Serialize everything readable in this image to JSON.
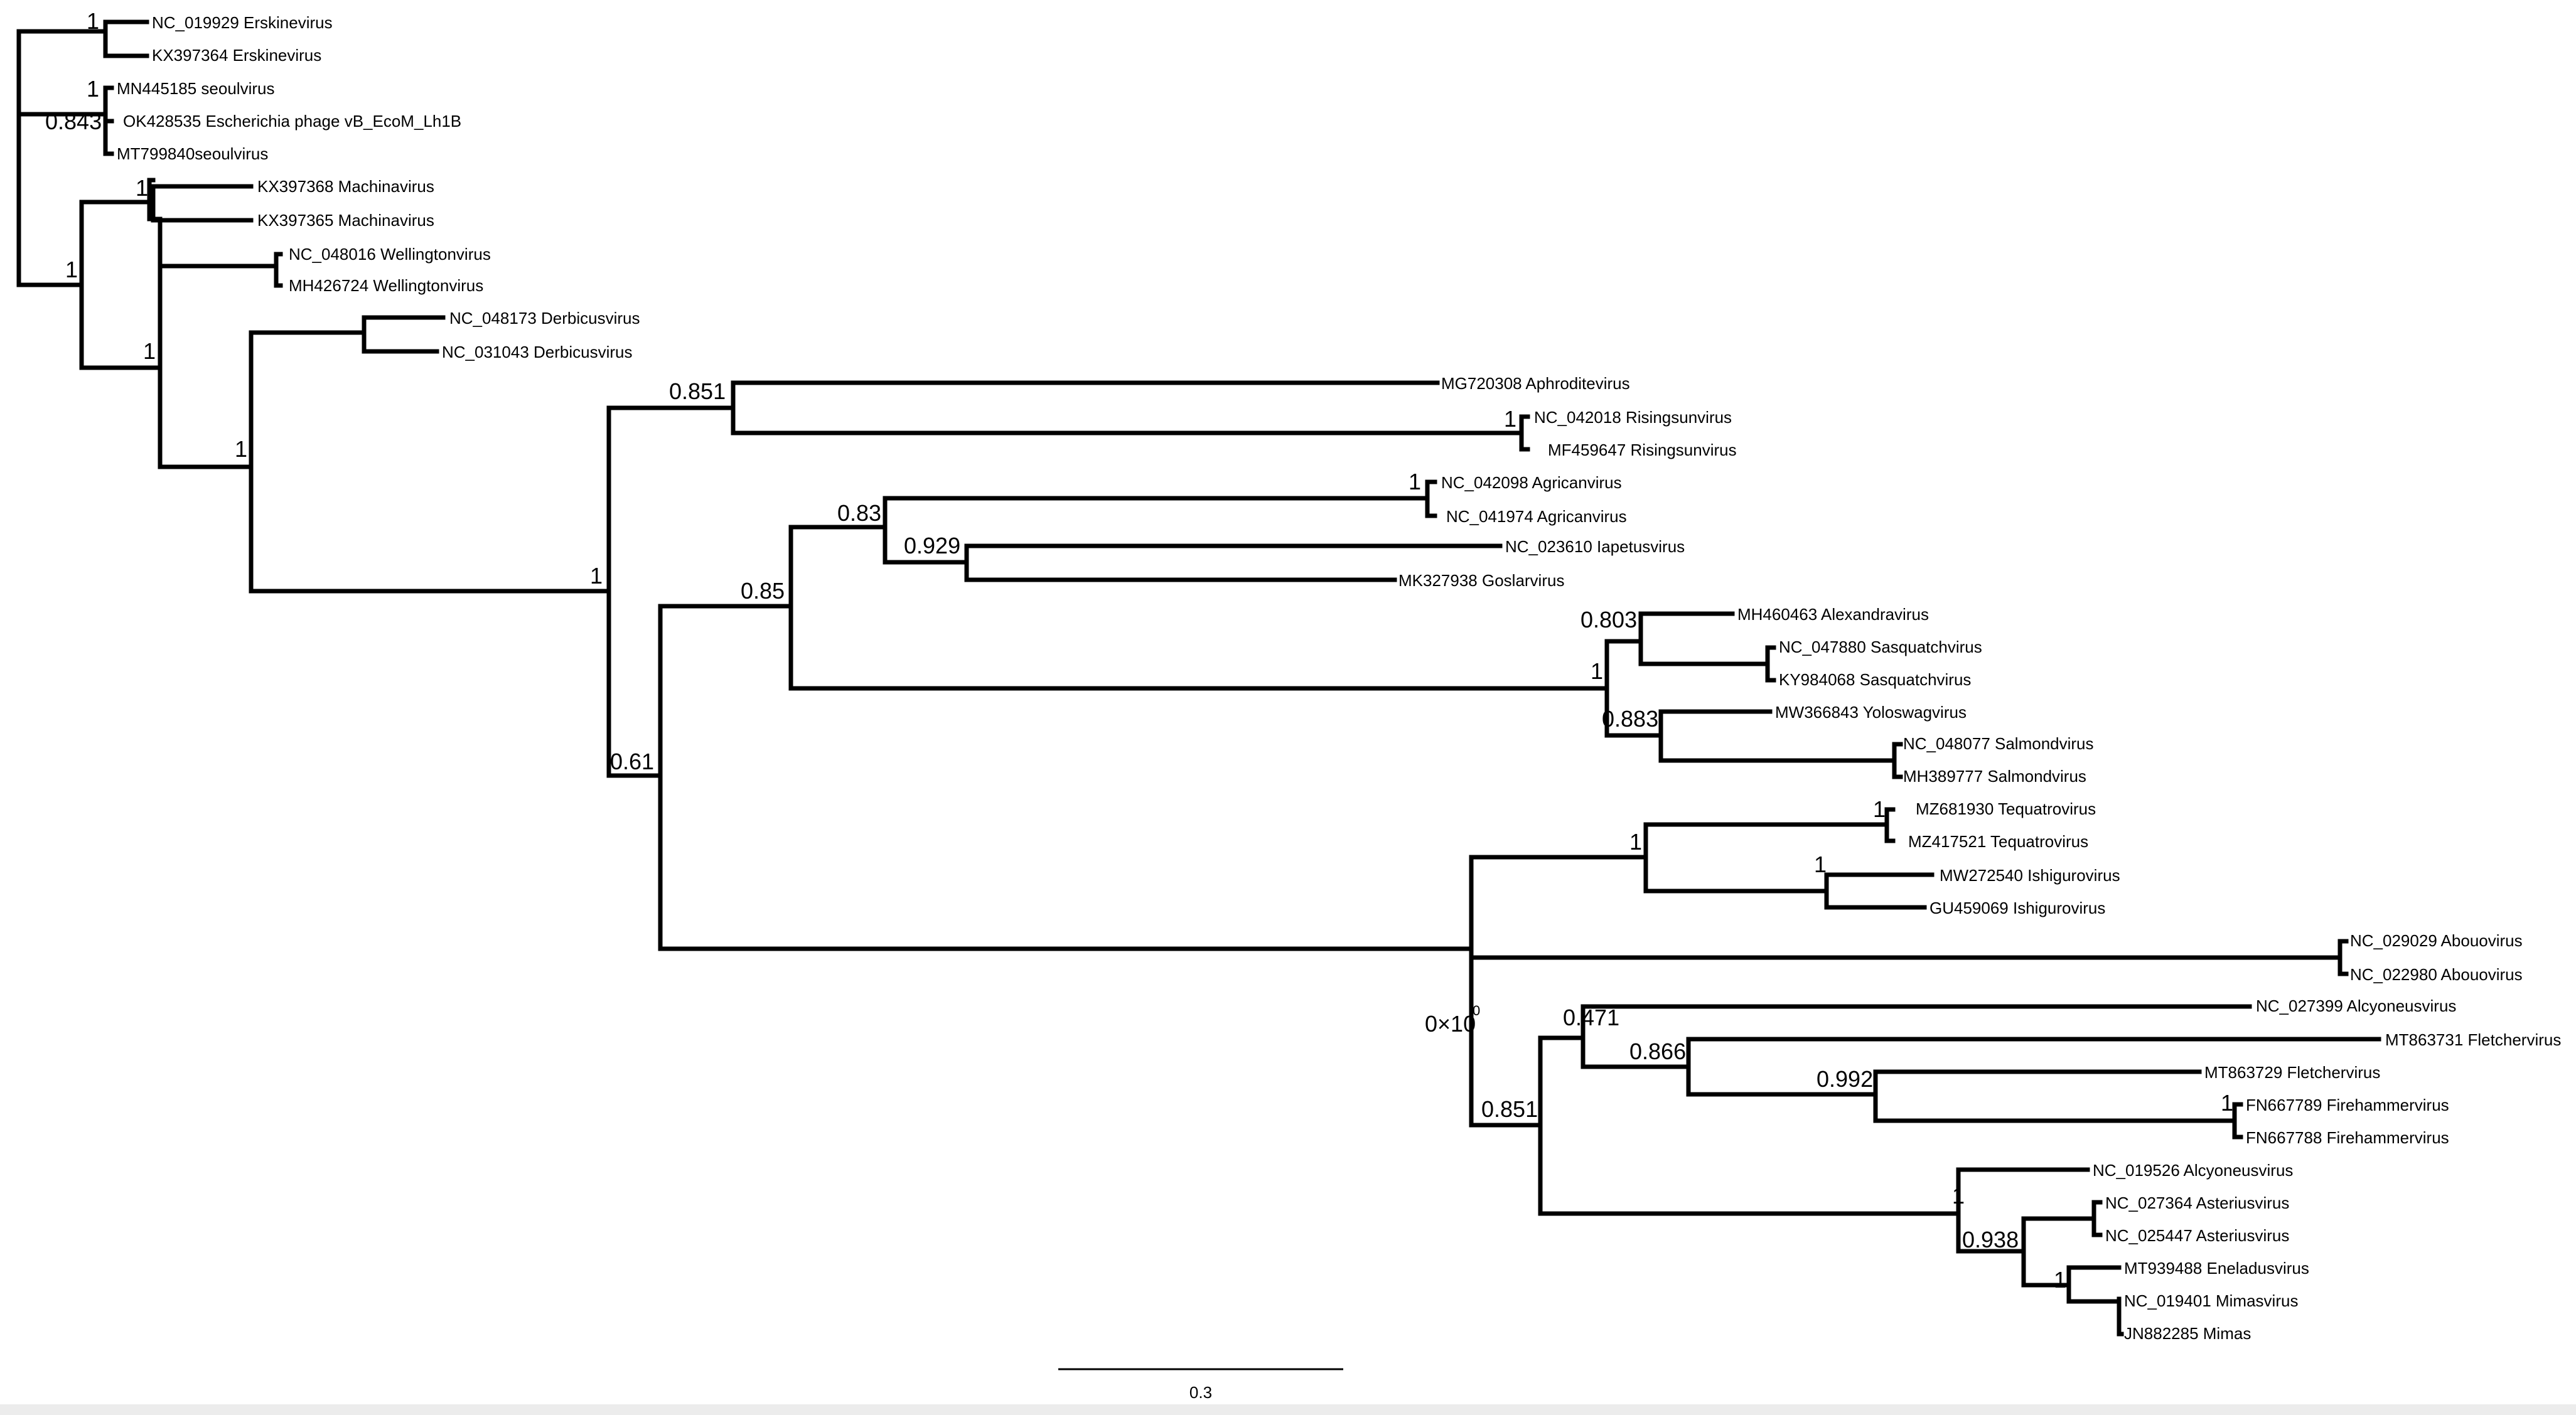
{
  "tips": [
    "NC_019929 Erskinevirus",
    "KX397364 Erskinevirus",
    "MN445185 seoulvirus",
    "OK428535 Escherichia phage vB_EcoM_Lh1B",
    "MT799840seoulvirus",
    "KX397368  Machinavirus",
    "KX397365  Machinavirus",
    "NC_048016 Wellingtonvirus",
    "MH426724 Wellingtonvirus",
    "NC_048173 Derbicusvirus",
    "NC_031043 Derbicusvirus",
    "MG720308 Aphroditevirus",
    "NC_042018 Risingsunvirus",
    "MF459647 Risingsunvirus",
    "NC_042098 Agricanvirus",
    "NC_041974 Agricanvirus",
    "NC_023610 Iapetusvirus",
    "MK327938 Goslarvirus",
    "MH460463 Alexandravirus",
    "NC_047880 Sasquatchvirus",
    "KY984068 Sasquatchvirus",
    "MW366843 Yoloswagvirus",
    "NC_048077 Salmondvirus",
    "MH389777 Salmondvirus",
    "MZ681930 Tequatrovirus",
    "MZ417521 Tequatrovirus",
    "MW272540 Ishigurovirus",
    "GU459069 Ishigurovirus",
    "NC_029029 Abouovirus",
    "NC_022980 Abouovirus",
    "NC_027399 Alcyoneusvirus",
    "MT863731 Fletchervirus",
    "MT863729 Fletchervirus",
    "FN667789 Firehammervirus",
    "FN667788 Firehammervirus",
    "NC_019526 Alcyoneusvirus",
    "NC_027364 Asteriusvirus",
    "NC_025447 Asteriusvirus",
    "MT939488 Eneladusvirus",
    "NC_019401 Mimasvirus",
    "JN882285 Mimas"
  ],
  "support": [
    "1",
    "0.843",
    "1",
    "1",
    "1",
    "1",
    "1",
    "0.851",
    "1",
    "0.83",
    "0.929",
    "0.85",
    "0.61",
    "0.803",
    "1",
    "0.883",
    "1",
    "1",
    "1",
    "1",
    "0×10",
    "0",
    "0.471",
    "0.866",
    "0.992",
    "1",
    "0.851",
    "1",
    "0.938",
    "1",
    "1"
  ],
  "scale_bar": {
    "label": "0.3"
  }
}
